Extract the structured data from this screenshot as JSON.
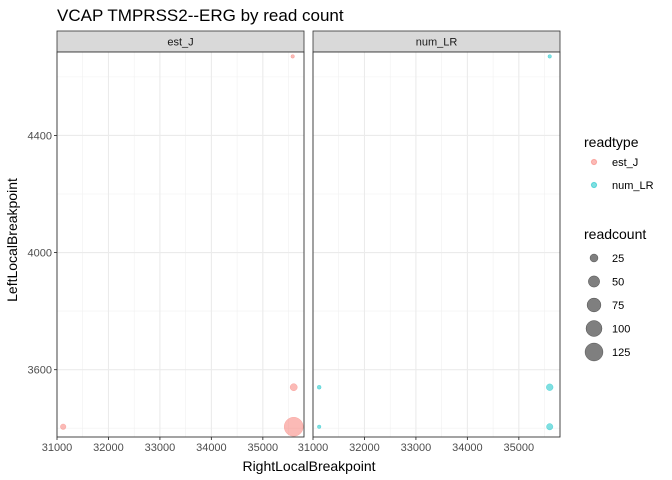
{
  "chart_data": {
    "type": "scatter",
    "title": "VCAP TMPRSS2--ERG by read count",
    "xlabel": "RightLocalBreakpoint",
    "ylabel": "LeftLocalBreakpoint",
    "xlim": [
      31000,
      35800
    ],
    "ylim": [
      3370,
      4685
    ],
    "x_ticks": [
      31000,
      32000,
      33000,
      34000,
      35000
    ],
    "x_tick_labels": [
      "31000",
      "32000",
      "33000",
      "34000",
      "35000"
    ],
    "y_ticks": [
      3600,
      4000,
      4400
    ],
    "y_tick_labels": [
      "3600",
      "4000",
      "4400"
    ],
    "grid": true,
    "facets": [
      "est_J",
      "num_LR"
    ],
    "colors": {
      "est_J": "#F8766D",
      "num_LR": "#00BFC4"
    },
    "series": [
      {
        "name": "est_J",
        "facet": "est_J",
        "points": [
          {
            "x": 35580,
            "y": 4670,
            "readcount": 1
          },
          {
            "x": 31120,
            "y": 3405,
            "readcount": 12
          },
          {
            "x": 35600,
            "y": 3540,
            "readcount": 20
          },
          {
            "x": 35600,
            "y": 3405,
            "readcount": 140
          }
        ]
      },
      {
        "name": "num_LR",
        "facet": "num_LR",
        "points": [
          {
            "x": 35600,
            "y": 4670,
            "readcount": 1
          },
          {
            "x": 31120,
            "y": 3540,
            "readcount": 6
          },
          {
            "x": 31120,
            "y": 3405,
            "readcount": 1
          },
          {
            "x": 35600,
            "y": 3540,
            "readcount": 18
          },
          {
            "x": 35600,
            "y": 3405,
            "readcount": 16
          }
        ]
      }
    ],
    "legend": {
      "placement": "right",
      "color_title": "readtype",
      "color_entries": [
        "est_J",
        "num_LR"
      ],
      "size_title": "readcount",
      "size_entries": [
        25,
        50,
        75,
        100,
        125
      ],
      "size_entry_labels": [
        "25",
        "50",
        "75",
        "100",
        "125"
      ],
      "size_key_color": "#000000"
    },
    "point_alpha": 0.5
  }
}
